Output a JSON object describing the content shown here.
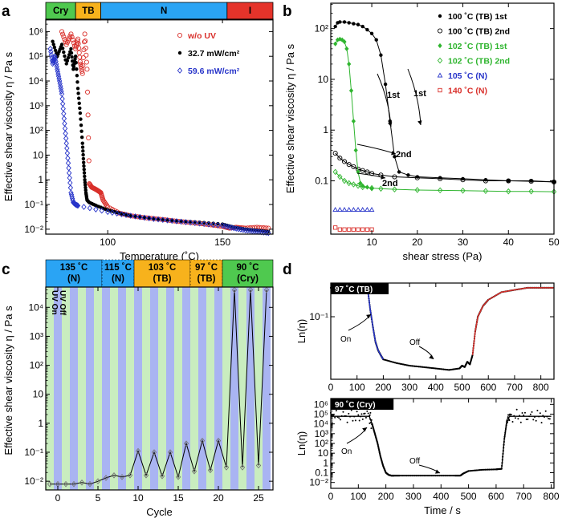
{
  "figure_labels": {
    "a": "a",
    "b": "b",
    "c": "c",
    "d": "d"
  },
  "colors": {
    "cry": "#4fc94f",
    "tb": "#f7b21c",
    "n": "#2aa4f4",
    "iso": "#e5332a",
    "red": "#d9302b",
    "black": "#000000",
    "blue": "#2633c9",
    "green": "#2fb52f",
    "stripe_blue": "#a9b4f2",
    "stripe_green": "#c9edbf"
  },
  "chart_data": [
    {
      "id": "a",
      "type": "scatter",
      "title": "",
      "xlabel": "Temperature (˚C)",
      "ylabel": "Effective shear viscosity η / Pa s",
      "xlim": [
        73,
        172
      ],
      "ylim_log10": [
        -2.2,
        6.5
      ],
      "yscale": "log",
      "x_ticks": [
        100,
        150
      ],
      "y_tick_labels": [
        "10⁻²",
        "10⁻¹",
        "1",
        "10",
        "10²",
        "10³",
        "10⁴",
        "10⁵",
        "10⁶"
      ],
      "y_tick_exps": [
        -2,
        -1,
        0,
        1,
        2,
        3,
        4,
        5,
        6
      ],
      "phase_bar": [
        {
          "label": "Cry",
          "from": 73,
          "to": 86,
          "color": "#4fc94f"
        },
        {
          "label": "TB",
          "from": 86,
          "to": 97,
          "color": "#f7b21c"
        },
        {
          "label": "N",
          "from": 97,
          "to": 152,
          "color": "#2aa4f4"
        },
        {
          "label": "I",
          "from": 152,
          "to": 172,
          "color": "#e5332a"
        }
      ],
      "legend": {
        "position": "top-right",
        "entries": [
          {
            "label": "w/o UV",
            "marker": "open-circle",
            "color": "#d9302b"
          },
          {
            "label": "32.7 mW/cm²",
            "marker": "filled-circle",
            "color": "#000000"
          },
          {
            "label": "59.6 mW/cm²",
            "marker": "open-diamond",
            "color": "#2633c9"
          }
        ]
      },
      "series": [
        {
          "name": "w/o UV",
          "color": "#d9302b",
          "x": [
            80,
            82,
            84,
            86,
            87,
            88,
            89,
            90,
            91,
            92,
            93,
            94,
            95,
            96,
            97,
            98,
            100,
            105,
            110,
            115,
            120,
            125,
            130,
            135,
            140,
            145,
            150,
            153,
            156,
            160,
            165,
            170
          ],
          "y": [
            1000000,
            300000,
            800000,
            200000,
            500000,
            60000,
            20000,
            800000,
            30000,
            0.7,
            0.5,
            0.45,
            0.4,
            0.35,
            0.3,
            0.15,
            0.08,
            0.045,
            0.035,
            0.03,
            0.027,
            0.024,
            0.021,
            0.019,
            0.017,
            0.015,
            0.013,
            0.011,
            0.012,
            0.011,
            0.012,
            0.011
          ]
        },
        {
          "name": "32.7 mW/cm²",
          "color": "#000000",
          "x": [
            76,
            78,
            80,
            82,
            84,
            85,
            86,
            87,
            88,
            89,
            89.5,
            90,
            90.5,
            91,
            92,
            95,
            100,
            105,
            110,
            120,
            130,
            140,
            150,
            155,
            160,
            165,
            170
          ],
          "y": [
            400000,
            100000,
            300000,
            50000,
            200000,
            30000,
            100000,
            5000,
            500,
            30,
            5,
            1,
            0.3,
            0.15,
            0.12,
            0.09,
            0.06,
            0.045,
            0.035,
            0.027,
            0.022,
            0.019,
            0.016,
            0.012,
            0.01,
            0.009,
            0.008
          ]
        },
        {
          "name": "59.6 mW/cm²",
          "color": "#2633c9",
          "x": [
            75,
            76,
            77,
            78,
            79,
            80,
            81,
            82,
            83,
            84,
            85,
            86,
            87,
            100,
            110,
            120,
            130,
            140,
            150,
            155,
            160,
            165,
            170
          ],
          "y": [
            200000,
            50000,
            100000,
            30000,
            10000,
            3000,
            300,
            30,
            3,
            0.3,
            0.12,
            0.1,
            0.09,
            0.05,
            0.035,
            0.026,
            0.021,
            0.017,
            0.014,
            0.011,
            0.009,
            0.008,
            0.007
          ]
        }
      ]
    },
    {
      "id": "b",
      "type": "line",
      "xlabel": "shear stress (Pa)",
      "ylabel": "Effective shear viscosity η / Pa s",
      "xlim": [
        1,
        50
      ],
      "ylim_log10": [
        -2.05,
        2.5
      ],
      "yscale": "log",
      "x_ticks": [
        10,
        20,
        30,
        40,
        50
      ],
      "y_tick_labels": [
        "0.1",
        "1",
        "10",
        "10²"
      ],
      "y_tick_exps": [
        -1,
        0,
        1,
        2
      ],
      "legend": {
        "position": "top-right",
        "entries": [
          {
            "label": "100 ˚C (TB) 1st",
            "marker": "filled-circle",
            "color": "#000000"
          },
          {
            "label": "100 ˚C (TB) 2nd",
            "marker": "open-circle",
            "color": "#000000"
          },
          {
            "label": "102 ˚C (TB) 1st",
            "marker": "filled-diamond",
            "color": "#2fb52f"
          },
          {
            "label": "102 ˚C (TB) 2nd",
            "marker": "open-diamond",
            "color": "#2fb52f"
          },
          {
            "label": "105 ˚C (N)",
            "marker": "open-triangle",
            "color": "#2633c9"
          },
          {
            "label": "140 ˚C (N)",
            "marker": "open-square",
            "color": "#d9302b"
          }
        ]
      },
      "annotations": [
        "1st",
        "1st",
        "2nd",
        "2nd"
      ],
      "series": [
        {
          "name": "100 ˚C (TB) 1st",
          "color": "#000000",
          "x": [
            2,
            2.5,
            3,
            4,
            5,
            6,
            7,
            8,
            9,
            10,
            11,
            12,
            13,
            14,
            15,
            16,
            18,
            20,
            25,
            30,
            35,
            40,
            45,
            50
          ],
          "y": [
            110,
            130,
            135,
            135,
            130,
            125,
            120,
            110,
            95,
            80,
            60,
            30,
            8,
            1.5,
            0.3,
            0.15,
            0.13,
            0.12,
            0.115,
            0.11,
            0.105,
            0.1,
            0.1,
            0.095
          ]
        },
        {
          "name": "100 ˚C (TB) 2nd",
          "color": "#000000",
          "x": [
            2,
            3,
            4,
            5,
            6,
            7,
            8,
            9,
            10,
            12,
            15,
            20,
            25,
            30,
            35,
            40,
            45,
            50
          ],
          "y": [
            0.35,
            0.28,
            0.24,
            0.21,
            0.19,
            0.17,
            0.16,
            0.15,
            0.14,
            0.13,
            0.12,
            0.115,
            0.11,
            0.105,
            0.1,
            0.1,
            0.098,
            0.095
          ]
        },
        {
          "name": "102 ˚C (TB) 1st",
          "color": "#2fb52f",
          "x": [
            2,
            2.5,
            3,
            3.5,
            4,
            4.5,
            5,
            5.5,
            6,
            6.5,
            7,
            7.5,
            8,
            9,
            10
          ],
          "y": [
            50,
            60,
            62,
            60,
            55,
            40,
            20,
            6,
            1.5,
            0.4,
            0.15,
            0.09,
            0.08,
            0.075,
            0.07
          ]
        },
        {
          "name": "102 ˚C (TB) 2nd",
          "color": "#2fb52f",
          "x": [
            2,
            3,
            4,
            5,
            6,
            7,
            8,
            10,
            12,
            15,
            20,
            25,
            30,
            35,
            40,
            45,
            50
          ],
          "y": [
            0.15,
            0.12,
            0.1,
            0.09,
            0.085,
            0.08,
            0.075,
            0.072,
            0.07,
            0.068,
            0.066,
            0.065,
            0.064,
            0.063,
            0.062,
            0.062,
            0.061
          ]
        },
        {
          "name": "105 ˚C (N)",
          "color": "#2633c9",
          "x": [
            2,
            3,
            4,
            5,
            6,
            7,
            8,
            9,
            10
          ],
          "y": [
            0.027,
            0.027,
            0.027,
            0.027,
            0.027,
            0.027,
            0.027,
            0.027,
            0.027
          ]
        },
        {
          "name": "140 ˚C (N)",
          "color": "#d9302b",
          "x": [
            2,
            3,
            4,
            5,
            6,
            7,
            8,
            9,
            10
          ],
          "y": [
            0.012,
            0.011,
            0.011,
            0.011,
            0.011,
            0.011,
            0.011,
            0.011,
            0.011
          ]
        }
      ]
    },
    {
      "id": "c",
      "type": "line",
      "xlabel": "Cycle",
      "ylabel": "Effective shear viscosity η / Pa s",
      "xlim": [
        -1.5,
        26.8
      ],
      "ylim_log10": [
        -2.3,
        4.7
      ],
      "yscale": "log",
      "x_ticks": [
        0,
        5,
        10,
        15,
        20,
        25
      ],
      "y_tick_labels": [
        "10⁻²",
        "10⁻¹",
        "1",
        "10",
        "10²",
        "10³",
        "10⁴"
      ],
      "y_tick_exps": [
        -2,
        -1,
        0,
        1,
        2,
        3,
        4
      ],
      "phase_bar": [
        {
          "label": "135 ˚C\n(N)",
          "from": -1.5,
          "to": 5.5,
          "color": "#2aa4f4"
        },
        {
          "label": "115 ˚C\n(N)",
          "from": 5.5,
          "to": 9.5,
          "color": "#2aa4f4"
        },
        {
          "label": "103 ˚C\n(TB)",
          "from": 9.5,
          "to": 16.5,
          "color": "#f7b21c"
        },
        {
          "label": "97 ˚C\n(TB)",
          "from": 16.5,
          "to": 20.5,
          "color": "#f7b21c"
        },
        {
          "label": "90 ˚C\n(Cry)",
          "from": 20.5,
          "to": 26.8,
          "color": "#4fc94f"
        }
      ],
      "stripe_labels": [
        "UV On",
        "UV Off"
      ],
      "series": [
        {
          "name": "viscosity",
          "color": "#000000",
          "x": [
            -1,
            0,
            1,
            2,
            3,
            4,
            5,
            6,
            7,
            8,
            9,
            10,
            11,
            12,
            13,
            14,
            15,
            16,
            17,
            18,
            19,
            20,
            21,
            22,
            23,
            24,
            25,
            26
          ],
          "y": [
            0.008,
            0.008,
            0.008,
            0.008,
            0.009,
            0.008,
            0.01,
            0.013,
            0.016,
            0.014,
            0.016,
            0.11,
            0.016,
            0.1,
            0.015,
            0.1,
            0.014,
            0.2,
            0.022,
            0.25,
            0.024,
            0.25,
            0.03,
            40000,
            0.03,
            40000,
            0.035,
            40000
          ]
        }
      ]
    },
    {
      "id": "d-top",
      "type": "line",
      "title_box": "97 ˚C (TB)",
      "xlabel": "",
      "ylabel": "Ln(η)",
      "xlim": [
        0,
        850
      ],
      "ylim_log10": [
        -1.65,
        -0.65
      ],
      "yscale": "log",
      "x_ticks": [
        0,
        100,
        200,
        300,
        400,
        500,
        600,
        700,
        800
      ],
      "y_tick_labels": [
        "10⁻¹"
      ],
      "y_tick_exps": [
        -1
      ],
      "annotations": [
        "On",
        "Off"
      ],
      "series": [
        {
          "name": "trace",
          "color": "#000000",
          "x": [
            0,
            50,
            100,
            140,
            150,
            160,
            170,
            180,
            190,
            200,
            250,
            300,
            350,
            400,
            450,
            490,
            500,
            510,
            520,
            530,
            540,
            550,
            560,
            580,
            600,
            650,
            700,
            750,
            800,
            850
          ],
          "y": [
            0.2,
            0.2,
            0.2,
            0.2,
            0.12,
            0.08,
            0.055,
            0.045,
            0.04,
            0.036,
            0.033,
            0.031,
            0.03,
            0.029,
            0.028,
            0.029,
            0.031,
            0.03,
            0.034,
            0.032,
            0.04,
            0.07,
            0.1,
            0.13,
            0.15,
            0.18,
            0.19,
            0.2,
            0.2,
            0.2
          ]
        }
      ]
    },
    {
      "id": "d-bottom",
      "type": "line",
      "title_box": "90 ˚C (Cry)",
      "xlabel": "Time / s",
      "ylabel": "Ln(η)",
      "xlim": [
        0,
        810
      ],
      "ylim_log10": [
        -2.6,
        6.6
      ],
      "yscale": "log",
      "x_ticks": [
        0,
        100,
        200,
        300,
        400,
        500,
        600,
        700,
        800
      ],
      "y_tick_labels": [
        "10⁻²",
        "0.1",
        "1",
        "10",
        "10²",
        "10³",
        "10⁴",
        "10⁵",
        "10⁶"
      ],
      "y_tick_exps": [
        -2,
        -1,
        0,
        1,
        2,
        3,
        4,
        5,
        6
      ],
      "annotations": [
        "On",
        "Off"
      ],
      "series": [
        {
          "name": "trace",
          "color": "#000000",
          "x": [
            0,
            50,
            100,
            140,
            150,
            160,
            170,
            180,
            190,
            200,
            210,
            220,
            230,
            250,
            300,
            350,
            400,
            450,
            470,
            480,
            500,
            550,
            600,
            620,
            630,
            640,
            650,
            700,
            750,
            800
          ],
          "y": [
            60000,
            60000,
            60000,
            60000,
            10000,
            1000,
            100,
            5,
            0.5,
            0.1,
            0.06,
            0.05,
            0.05,
            0.05,
            0.05,
            0.05,
            0.05,
            0.05,
            0.05,
            0.08,
            0.15,
            0.2,
            0.22,
            0.25,
            300,
            30000,
            60000,
            60000,
            60000,
            60000
          ]
        }
      ]
    }
  ]
}
